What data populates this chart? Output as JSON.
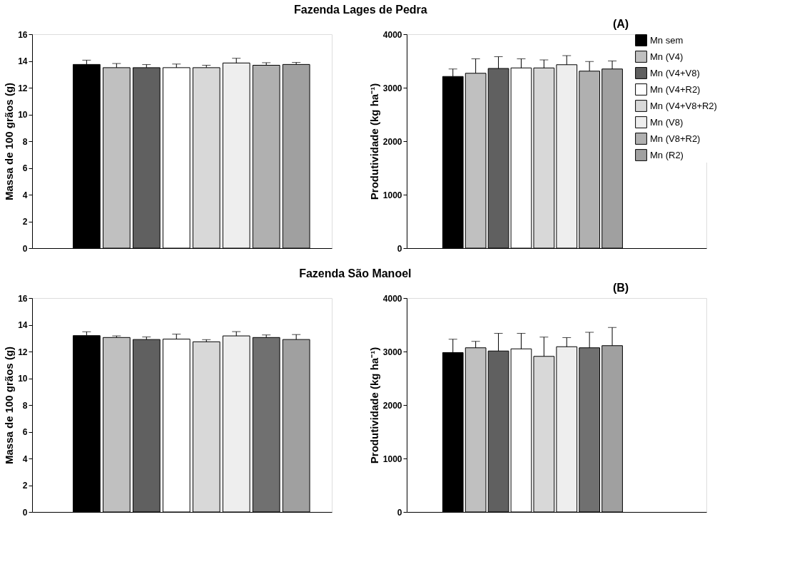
{
  "chart_data": [
    {
      "type": "bar",
      "title": "Fazenda Lages de Pedra",
      "ylabel": "Massa de 100 grãos (g)",
      "categories": [
        null
      ],
      "ylim": [
        0,
        16
      ],
      "yticks": [
        0,
        2,
        4,
        6,
        8,
        10,
        12,
        14,
        16
      ],
      "tick_labels": "y",
      "legend": false,
      "series": [
        {
          "color": "#000000",
          "values": [
            13.74
          ],
          "errors": [
            [
              13.74,
              14.06
            ]
          ]
        },
        {
          "color": "#c0c0c0",
          "values": [
            13.5
          ],
          "errors": [
            [
              13.5,
              13.81
            ]
          ]
        },
        {
          "color": "#606060",
          "values": [
            13.5
          ],
          "errors": [
            [
              13.5,
              13.73
            ]
          ]
        },
        {
          "color": "#ffffff",
          "values": [
            13.5
          ],
          "errors": [
            [
              13.5,
              13.77
            ]
          ]
        },
        {
          "color": "#d8d8d8",
          "values": [
            13.5
          ],
          "errors": [
            [
              13.5,
              13.68
            ]
          ]
        },
        {
          "color": "#eeeeee",
          "values": [
            13.85
          ],
          "errors": [
            [
              13.85,
              14.2
            ]
          ]
        },
        {
          "color": "#b0b0b0",
          "values": [
            13.68
          ],
          "errors": [
            [
              13.68,
              13.87
            ]
          ]
        },
        {
          "color": "#a0a0a0",
          "values": [
            13.74
          ],
          "errors": [
            [
              13.74,
              13.89
            ]
          ]
        }
      ]
    },
    {
      "type": "bar",
      "ylabel": "Produtividade (kg ha⁻¹)",
      "annotations": [
        "(A)"
      ],
      "categories": [
        null
      ],
      "ylim": [
        0,
        4000
      ],
      "yticks": [
        0,
        1000,
        2000,
        3000,
        4000
      ],
      "tick_labels": "y",
      "legend": "right",
      "series": [
        {
          "name": "Mn sem",
          "color": "#000000",
          "values": [
            3210
          ],
          "errors": [
            [
              3210,
              3350
            ]
          ]
        },
        {
          "name": "Mn (V4)",
          "color": "#c0c0c0",
          "values": [
            3270
          ],
          "errors": [
            [
              3270,
              3540
            ]
          ]
        },
        {
          "name": "Mn (V4+V8)",
          "color": "#606060",
          "values": [
            3360
          ],
          "errors": [
            [
              3360,
              3580
            ]
          ]
        },
        {
          "name": "Mn (V4+R2)",
          "color": "#ffffff",
          "values": [
            3370
          ],
          "errors": [
            [
              3370,
              3540
            ]
          ]
        },
        {
          "name": "Mn (V4+V8+R2)",
          "color": "#d8d8d8",
          "values": [
            3370
          ],
          "errors": [
            [
              3370,
              3520
            ]
          ]
        },
        {
          "name": "Mn (V8)",
          "color": "#eeeeee",
          "values": [
            3430
          ],
          "errors": [
            [
              3430,
              3600
            ]
          ]
        },
        {
          "name": "Mn (V8+R2)",
          "color": "#b0b0b0",
          "values": [
            3310
          ],
          "errors": [
            [
              3310,
              3490
            ]
          ]
        },
        {
          "name": "Mn (R2)",
          "color": "#a0a0a0",
          "values": [
            3350
          ],
          "errors": [
            [
              3350,
              3500
            ]
          ]
        }
      ]
    },
    {
      "type": "bar",
      "title": "Fazenda São Manoel",
      "ylabel": "Massa de 100 grãos (g)",
      "categories": [
        null
      ],
      "ylim": [
        0,
        16
      ],
      "yticks": [
        0,
        2,
        4,
        6,
        8,
        10,
        12,
        14,
        16
      ],
      "tick_labels": "y",
      "legend": false,
      "series": [
        {
          "color": "#000000",
          "values": [
            13.19
          ],
          "errors": [
            [
              13.19,
              13.48
            ]
          ]
        },
        {
          "color": "#c0c0c0",
          "values": [
            13.05
          ],
          "errors": [
            [
              13.05,
              13.17
            ]
          ]
        },
        {
          "color": "#606060",
          "values": [
            12.9
          ],
          "errors": [
            [
              12.9,
              13.09
            ]
          ]
        },
        {
          "color": "#ffffff",
          "values": [
            12.93
          ],
          "errors": [
            [
              12.93,
              13.3
            ]
          ]
        },
        {
          "color": "#d8d8d8",
          "values": [
            12.73
          ],
          "errors": [
            [
              12.73,
              12.89
            ]
          ]
        },
        {
          "color": "#eeeeee",
          "values": [
            13.17
          ],
          "errors": [
            [
              13.17,
              13.49
            ]
          ]
        },
        {
          "color": "#707070",
          "values": [
            13.05
          ],
          "errors": [
            [
              13.05,
              13.24
            ]
          ]
        },
        {
          "color": "#a0a0a0",
          "values": [
            12.9
          ],
          "errors": [
            [
              12.9,
              13.27
            ]
          ]
        }
      ]
    },
    {
      "type": "bar",
      "ylabel": "Produtividade (kg ha⁻¹)",
      "annotations": [
        "(B)"
      ],
      "categories": [
        null
      ],
      "ylim": [
        0,
        4000
      ],
      "yticks": [
        0,
        1000,
        2000,
        3000,
        4000
      ],
      "tick_labels": "y",
      "legend": false,
      "series": [
        {
          "color": "#000000",
          "values": [
            2980
          ],
          "errors": [
            [
              2980,
              3230
            ]
          ]
        },
        {
          "color": "#c0c0c0",
          "values": [
            3070
          ],
          "errors": [
            [
              3070,
              3190
            ]
          ]
        },
        {
          "color": "#606060",
          "values": [
            3010
          ],
          "errors": [
            [
              3010,
              3340
            ]
          ]
        },
        {
          "color": "#ffffff",
          "values": [
            3050
          ],
          "errors": [
            [
              3050,
              3340
            ]
          ]
        },
        {
          "color": "#d8d8d8",
          "values": [
            2910
          ],
          "errors": [
            [
              2910,
              3270
            ]
          ]
        },
        {
          "color": "#eeeeee",
          "values": [
            3090
          ],
          "errors": [
            [
              3090,
              3260
            ]
          ]
        },
        {
          "color": "#707070",
          "values": [
            3070
          ],
          "errors": [
            [
              3070,
              3360
            ]
          ]
        },
        {
          "color": "#a0a0a0",
          "values": [
            3110
          ],
          "errors": [
            [
              3110,
              3450
            ]
          ]
        }
      ]
    }
  ]
}
